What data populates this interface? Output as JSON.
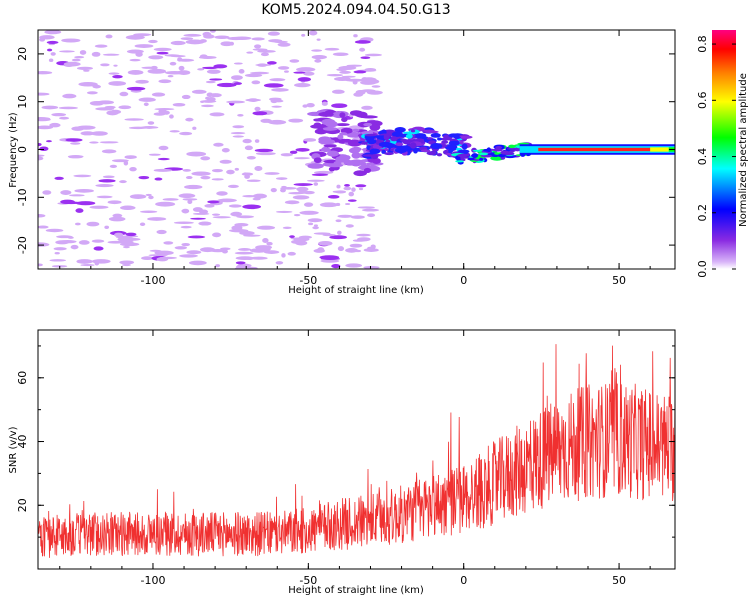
{
  "title": "KOM5.2024.094.04.50.G13",
  "colors": {
    "snr_line": "#f03030",
    "colormap_stops": [
      "#ffffff",
      "#d8b4f8",
      "#8a2be2",
      "#0000ff",
      "#00ffff",
      "#00ff00",
      "#ffff00",
      "#ff8000",
      "#ff0000",
      "#ff0080"
    ]
  },
  "chart_data": [
    {
      "type": "heatmap",
      "xlabel": "Height of straight line (km)",
      "ylabel": "Frequency (Hz)",
      "xlim": [
        -137,
        68
      ],
      "ylim": [
        -25,
        25
      ],
      "x_ticks": [
        -100,
        -50,
        0,
        50
      ],
      "y_ticks": [
        20,
        10,
        0,
        -10,
        -20
      ],
      "colorbar": {
        "label": "Normalized spectral amplitude",
        "range": [
          0.0,
          0.85
        ],
        "ticks": [
          "0.0",
          "0.2",
          "0.4",
          "0.6",
          "0.8"
        ]
      },
      "features": [
        {
          "x_range": [
            -137,
            -30
          ],
          "freq_range": [
            -25,
            25
          ],
          "amplitude": 0.05,
          "description": "diffuse noise"
        },
        {
          "x_range": [
            -45,
            -30
          ],
          "freq_range": [
            -5,
            7
          ],
          "amplitude": 0.15
        },
        {
          "x_range": [
            -30,
            0
          ],
          "freq_range": [
            -3,
            3
          ],
          "amplitude": 0.25
        },
        {
          "x_range": [
            0,
            20
          ],
          "freq_range": [
            -2,
            1
          ],
          "amplitude": 0.35
        },
        {
          "x_range": [
            20,
            68
          ],
          "freq_range": [
            -1,
            1
          ],
          "amplitude": 0.7
        }
      ]
    },
    {
      "type": "line",
      "xlabel": "Height of straight line (km)",
      "ylabel": "SNR (v/v)",
      "xlim": [
        -137,
        68
      ],
      "ylim": [
        0,
        75
      ],
      "x_ticks": [
        -100,
        -50,
        0,
        50
      ],
      "y_ticks": [
        20,
        40,
        60
      ],
      "series": [
        {
          "x": [
            -137,
            -120,
            -100,
            -80,
            -60,
            -50,
            -40,
            -30,
            -20,
            -10,
            0,
            10,
            20,
            30,
            40,
            50,
            60,
            68
          ],
          "y": [
            10,
            11,
            11,
            11,
            11,
            12,
            14,
            15,
            17,
            20,
            22,
            27,
            32,
            37,
            40,
            41,
            39,
            38
          ]
        }
      ]
    }
  ]
}
